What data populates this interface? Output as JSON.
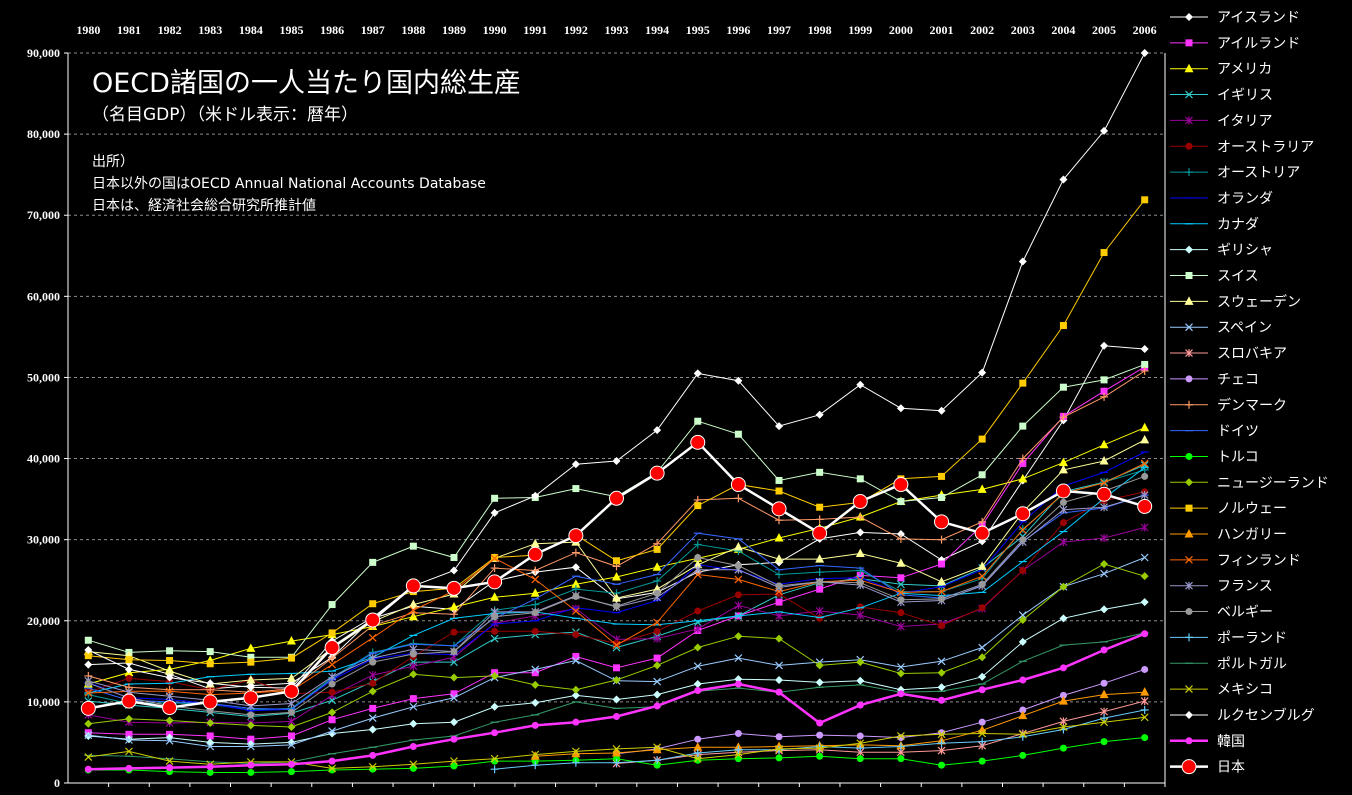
{
  "chart_data": {
    "type": "line",
    "title": "OECD諸国の一人当たり国内総生産",
    "subtitle": "（名目GDP）（米ドル表示：暦年）",
    "notes": [
      "出所）",
      "日本以外の国はOECD Annual National Accounts Database",
      "日本は、経済社会総合研究所推計値"
    ],
    "x": [
      "1980",
      "1981",
      "1982",
      "1983",
      "1984",
      "1985",
      "1986",
      "1987",
      "1988",
      "1989",
      "1990",
      "1991",
      "1992",
      "1993",
      "1994",
      "1995",
      "1996",
      "1997",
      "1998",
      "1999",
      "2000",
      "2001",
      "2002",
      "2003",
      "2004",
      "2005",
      "2006"
    ],
    "y_ticks": [
      "0",
      "10,000",
      "20,000",
      "30,000",
      "40,000",
      "50,000",
      "60,000",
      "70,000",
      "80,000",
      "90,000"
    ],
    "ylim": [
      0,
      90000
    ],
    "grid": true,
    "legend_position": "right",
    "series": [
      {
        "name": "アイスランド",
        "color": "#ffffff",
        "marker": "diamond",
        "values": [
          14600,
          14800,
          13400,
          11600,
          12000,
          12300,
          15500,
          20300,
          21800,
          21400,
          24900,
          26000,
          26600,
          22700,
          23500,
          26000,
          26900,
          27200,
          30100,
          30900,
          30700,
          27500,
          29800,
          37300,
          44700,
          53900,
          53500
        ]
      },
      {
        "name": "アイルランド",
        "color": "#ff33ff",
        "marker": "square",
        "values": [
          6200,
          6000,
          6000,
          5800,
          5400,
          5800,
          7800,
          9200,
          10400,
          11000,
          13600,
          13600,
          15600,
          14200,
          15400,
          18800,
          20600,
          22300,
          23900,
          25600,
          25300,
          27000,
          31800,
          39400,
          45200,
          48300,
          51300
        ]
      },
      {
        "name": "アメリカ",
        "color": "#ffff00",
        "marker": "triangle",
        "values": [
          12200,
          13600,
          14000,
          15100,
          16600,
          17500,
          18300,
          19300,
          20500,
          21700,
          22900,
          23400,
          24500,
          25400,
          26600,
          27700,
          28800,
          30200,
          31400,
          32800,
          34700,
          35500,
          36200,
          37500,
          39500,
          41700,
          43800
        ]
      },
      {
        "name": "イギリス",
        "color": "#33cccc",
        "marker": "x",
        "values": [
          10100,
          9600,
          9200,
          8700,
          8200,
          8600,
          10200,
          12500,
          14900,
          14900,
          17800,
          18300,
          18600,
          16700,
          18100,
          19800,
          20600,
          23200,
          24700,
          25200,
          24500,
          24300,
          26500,
          30400,
          35900,
          37100,
          39200
        ]
      },
      {
        "name": "イタリア",
        "color": "#990099",
        "marker": "star",
        "values": [
          8400,
          7500,
          7400,
          7500,
          7400,
          7600,
          10800,
          13300,
          14400,
          15500,
          19700,
          20600,
          21500,
          17700,
          17800,
          19000,
          21900,
          20600,
          21200,
          20700,
          19300,
          19600,
          21500,
          26200,
          29700,
          30200,
          31500
        ]
      },
      {
        "name": "オーストラリア",
        "color": "#990000",
        "marker": "circle",
        "values": [
          11200,
          12900,
          12500,
          11500,
          12700,
          11000,
          11200,
          12300,
          15600,
          18600,
          18700,
          18700,
          18300,
          17200,
          18700,
          21200,
          23200,
          23300,
          20300,
          21700,
          21000,
          19400,
          21600,
          26200,
          32100,
          34800,
          35900
        ]
      },
      {
        "name": "オーストリア",
        "color": "#009999",
        "marker": "plus",
        "values": [
          10900,
          9800,
          9900,
          9700,
          9000,
          9200,
          13000,
          16100,
          17200,
          16900,
          21300,
          22000,
          23900,
          23400,
          24900,
          29400,
          28600,
          25700,
          26000,
          26200,
          23600,
          23600,
          25200,
          31300,
          35600,
          37100,
          38600
        ]
      },
      {
        "name": "オランダ",
        "color": "#0000ff",
        "marker": "line",
        "values": [
          12400,
          10500,
          10300,
          9800,
          8900,
          9100,
          12700,
          15300,
          16000,
          15800,
          19600,
          20000,
          21600,
          21000,
          22500,
          26900,
          26200,
          24500,
          25200,
          25300,
          23400,
          24200,
          26300,
          32200,
          36600,
          38300,
          40800
        ]
      },
      {
        "name": "カナダ",
        "color": "#00ccff",
        "marker": "line",
        "values": [
          11100,
          12200,
          12300,
          13100,
          13400,
          13500,
          13800,
          15500,
          18200,
          20300,
          20900,
          21100,
          20300,
          19600,
          19500,
          20000,
          20600,
          21100,
          20400,
          21600,
          23400,
          23100,
          23500,
          27300,
          31000,
          35100,
          38900
        ]
      },
      {
        "name": "ギリシャ",
        "color": "#ccffff",
        "marker": "diamond",
        "values": [
          5800,
          5400,
          5600,
          5000,
          4800,
          5000,
          6100,
          6600,
          7300,
          7500,
          9400,
          9900,
          10800,
          10300,
          10900,
          12200,
          12800,
          12700,
          12400,
          12600,
          11500,
          11800,
          13100,
          17400,
          20300,
          21400,
          22300
        ]
      },
      {
        "name": "スイス",
        "color": "#ccffcc",
        "marker": "square",
        "values": [
          17600,
          16100,
          16300,
          16200,
          15500,
          15500,
          22000,
          27200,
          29200,
          27800,
          35100,
          35200,
          36300,
          35300,
          38300,
          44600,
          43000,
          37300,
          38300,
          37500,
          34700,
          35200,
          38000,
          44000,
          48800,
          49700,
          51600
        ]
      },
      {
        "name": "スウェーデン",
        "color": "#ffff99",
        "marker": "triangle",
        "values": [
          16200,
          15700,
          13800,
          12200,
          12700,
          12900,
          16600,
          19900,
          22000,
          23300,
          27700,
          29500,
          29700,
          22800,
          23900,
          26900,
          29100,
          27600,
          27600,
          28300,
          27100,
          24800,
          26700,
          33400,
          38600,
          39700,
          42300
        ]
      },
      {
        "name": "スペイン",
        "color": "#99ccff",
        "marker": "x",
        "values": [
          5900,
          5300,
          5200,
          4500,
          4500,
          4700,
          6400,
          8000,
          9400,
          10500,
          13000,
          14000,
          15100,
          12600,
          12500,
          14400,
          15400,
          14500,
          14900,
          15200,
          14300,
          15000,
          16700,
          20700,
          24200,
          25800,
          27800
        ]
      },
      {
        "name": "スロバキア",
        "color": "#ff9999",
        "marker": "star",
        "values": [
          null,
          null,
          null,
          null,
          null,
          null,
          null,
          null,
          null,
          null,
          null,
          null,
          null,
          2400,
          2800,
          3500,
          3800,
          4000,
          4100,
          3800,
          3800,
          4000,
          4600,
          6100,
          7600,
          8800,
          10100
        ]
      },
      {
        "name": "チェコ",
        "color": "#cc99ff",
        "marker": "circle",
        "values": [
          null,
          null,
          null,
          null,
          null,
          null,
          null,
          null,
          null,
          null,
          null,
          null,
          null,
          3600,
          4200,
          5400,
          6100,
          5700,
          5900,
          5800,
          5600,
          6200,
          7500,
          9000,
          10800,
          12300,
          14000
        ]
      },
      {
        "name": "デンマーク",
        "color": "#ff9966",
        "marker": "plus",
        "values": [
          13200,
          11800,
          11500,
          11500,
          11200,
          11600,
          15400,
          19400,
          21000,
          20800,
          26500,
          26200,
          28400,
          26700,
          29500,
          34900,
          35100,
          32400,
          32500,
          32800,
          30100,
          30000,
          32200,
          40000,
          45100,
          47600,
          50800
        ]
      },
      {
        "name": "ドイツ",
        "color": "#3366ff",
        "marker": "line",
        "values": [
          11700,
          10200,
          10000,
          9800,
          9200,
          9100,
          12800,
          16000,
          17100,
          16900,
          20300,
          22700,
          25500,
          24500,
          25700,
          30800,
          30100,
          26300,
          26800,
          26500,
          23200,
          22800,
          24400,
          29800,
          33300,
          33900,
          35500
        ]
      },
      {
        "name": "トルコ",
        "color": "#00ff00",
        "marker": "circle",
        "values": [
          1600,
          1600,
          1400,
          1300,
          1300,
          1400,
          1600,
          1700,
          1800,
          2100,
          2700,
          2700,
          2800,
          3000,
          2200,
          2800,
          3000,
          3100,
          3300,
          3000,
          3000,
          2200,
          2700,
          3400,
          4300,
          5100,
          5600
        ]
      },
      {
        "name": "ニュージーランド",
        "color": "#99cc00",
        "marker": "diamond",
        "values": [
          7300,
          7900,
          7700,
          7400,
          7100,
          6900,
          8700,
          11300,
          13400,
          13000,
          13200,
          12100,
          11500,
          12700,
          14500,
          16700,
          18100,
          17800,
          14500,
          14900,
          13500,
          13600,
          15500,
          20100,
          24200,
          27000,
          25500
        ]
      },
      {
        "name": "ノルウェー",
        "color": "#ffcc00",
        "marker": "square",
        "values": [
          15700,
          15200,
          15100,
          14700,
          14900,
          15400,
          18500,
          22100,
          23600,
          24000,
          27800,
          28100,
          30600,
          27400,
          28800,
          34200,
          36800,
          36000,
          34000,
          34600,
          37500,
          37800,
          42400,
          49300,
          56400,
          65400,
          71900
        ]
      },
      {
        "name": "ハンガリー",
        "color": "#ff9900",
        "marker": "triangle",
        "values": [
          null,
          null,
          null,
          null,
          null,
          null,
          null,
          null,
          null,
          null,
          null,
          3300,
          3600,
          3700,
          4100,
          4400,
          4400,
          4500,
          4600,
          4700,
          4600,
          5200,
          6500,
          8300,
          10100,
          10900,
          11200
        ]
      },
      {
        "name": "フィンランド",
        "color": "#ff6600",
        "marker": "x",
        "values": [
          11100,
          11300,
          11300,
          10900,
          11100,
          11400,
          14600,
          17900,
          21300,
          23700,
          27700,
          25100,
          21200,
          17000,
          19800,
          25700,
          25100,
          23600,
          24800,
          25000,
          23500,
          23600,
          25500,
          31200,
          35700,
          37000,
          39400
        ]
      },
      {
        "name": "フランス",
        "color": "#9999cc",
        "marker": "star",
        "values": [
          12600,
          11200,
          10700,
          10200,
          9500,
          9800,
          13100,
          15400,
          16500,
          16200,
          21100,
          21100,
          23100,
          21700,
          22900,
          26300,
          26300,
          24100,
          24800,
          24400,
          22300,
          22500,
          24300,
          29700,
          33700,
          34000,
          35500
        ]
      },
      {
        "name": "ベルギー",
        "color": "#999999",
        "marker": "circle",
        "values": [
          12300,
          10500,
          9500,
          8900,
          8400,
          8700,
          12200,
          14900,
          15900,
          16200,
          20500,
          21000,
          23000,
          21800,
          23400,
          27800,
          26800,
          24300,
          24800,
          24700,
          22600,
          22700,
          24500,
          30000,
          34600,
          36000,
          37800
        ]
      },
      {
        "name": "ポーランド",
        "color": "#66ccff",
        "marker": "plus",
        "values": [
          null,
          null,
          null,
          null,
          null,
          null,
          null,
          null,
          null,
          null,
          1700,
          2200,
          2500,
          2500,
          2800,
          3700,
          4100,
          4100,
          4500,
          4300,
          4500,
          4900,
          5100,
          5700,
          6600,
          8000,
          9000
        ]
      },
      {
        "name": "ポルトガル",
        "color": "#339966",
        "marker": "line",
        "values": [
          3400,
          3300,
          3000,
          2600,
          2400,
          2600,
          3600,
          4400,
          5300,
          5800,
          7500,
          8400,
          10000,
          9200,
          9400,
          11300,
          11700,
          11200,
          11800,
          12100,
          11200,
          11300,
          12200,
          15000,
          17000,
          17400,
          18500
        ]
      },
      {
        "name": "メキシコ",
        "color": "#cccc00",
        "marker": "x",
        "values": [
          3200,
          3900,
          2700,
          2300,
          2600,
          2600,
          1800,
          2000,
          2300,
          2700,
          3000,
          3500,
          3900,
          4200,
          4400,
          3000,
          3500,
          4200,
          4300,
          4900,
          5800,
          6000,
          6100,
          6000,
          6900,
          7500,
          8100
        ]
      },
      {
        "name": "ルクセンブルグ",
        "color": "#ffffff",
        "marker": "diamond",
        "values": [
          16400,
          14000,
          13000,
          12300,
          11800,
          11700,
          17500,
          20400,
          24300,
          26200,
          33300,
          35400,
          39300,
          39700,
          43500,
          50500,
          49600,
          44000,
          45400,
          49100,
          46200,
          45900,
          50600,
          64300,
          74400,
          80400,
          90000
        ]
      },
      {
        "name": "韓国",
        "color": "#ff33ff",
        "marker": "circle",
        "values": [
          1700,
          1800,
          1900,
          2000,
          2200,
          2300,
          2700,
          3400,
          4500,
          5400,
          6200,
          7100,
          7500,
          8200,
          9500,
          11400,
          12200,
          11200,
          7400,
          9600,
          11000,
          10200,
          11500,
          12700,
          14200,
          16400,
          18400
        ]
      },
      {
        "name": "日本",
        "color": "#ff0000",
        "marker": "bigcircle",
        "values": [
          9200,
          10100,
          9300,
          10000,
          10500,
          11300,
          16700,
          20100,
          24300,
          24000,
          24800,
          28200,
          30500,
          35100,
          38200,
          42000,
          36800,
          33800,
          30800,
          34700,
          36800,
          32200,
          30800,
          33200,
          36000,
          35600,
          34100
        ]
      }
    ]
  }
}
